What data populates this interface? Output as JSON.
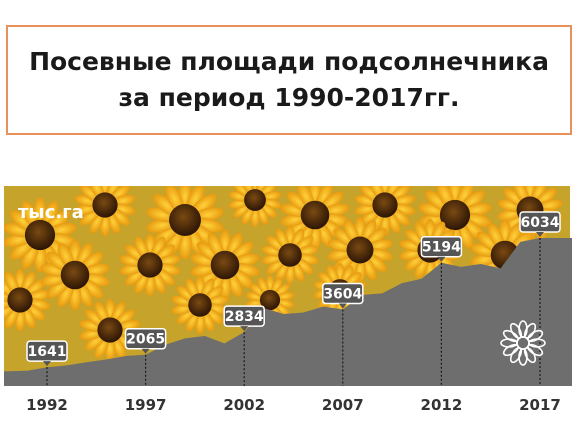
{
  "title": {
    "line1": "Посевные площади подсолнечника",
    "line2": "за период 1990-2017гг."
  },
  "chart_data": {
    "type": "area",
    "title": "Посевные площади подсолнечника за период 1990-2017гг.",
    "unit": "тыс.га",
    "xlabel": "",
    "ylabel": "",
    "x": [
      1990,
      1991,
      1992,
      1993,
      1994,
      1995,
      1996,
      1997,
      1998,
      1999,
      2000,
      2001,
      2002,
      2003,
      2004,
      2005,
      2006,
      2007,
      2008,
      2009,
      2010,
      2011,
      2012,
      2013,
      2014,
      2015,
      2016,
      2017
    ],
    "values": [
      1500,
      1520,
      1641,
      1700,
      1810,
      1900,
      2020,
      2065,
      2400,
      2620,
      2700,
      2450,
      2834,
      3650,
      3450,
      3500,
      3700,
      3604,
      4100,
      4150,
      4500,
      4650,
      5194,
      5050,
      5150,
      5000,
      5900,
      6034
    ],
    "labeled_points": [
      {
        "x": 1992,
        "value": 1641,
        "label": "1641"
      },
      {
        "x": 1997,
        "value": 2065,
        "label": "2065"
      },
      {
        "x": 2002,
        "value": 2834,
        "label": "2834"
      },
      {
        "x": 2007,
        "value": 3604,
        "label": "3604"
      },
      {
        "x": 2012,
        "value": 5194,
        "label": "5194"
      },
      {
        "x": 2017,
        "value": 6034,
        "label": "6034"
      }
    ],
    "x_ticks": [
      "1992",
      "1997",
      "2002",
      "2007",
      "2012",
      "2017"
    ],
    "colors": {
      "area": "#6e6e6e",
      "marker_box": "#555555",
      "guide": "#1a1a1a",
      "sky": "#f3c53a",
      "leaf": "#5e7a2c"
    }
  },
  "decor": {
    "background_image": "sunflower-field-image",
    "flower_icon": "flower-outline-icon"
  }
}
